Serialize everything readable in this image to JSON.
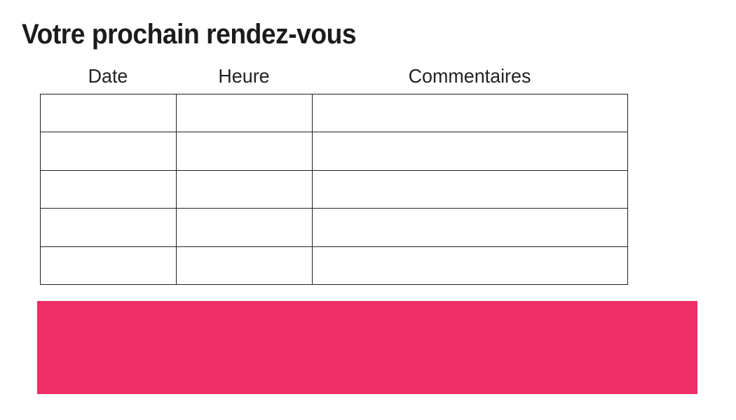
{
  "title": "Votre prochain rendez-vous",
  "table": {
    "headers": [
      "Date",
      "Heure",
      "Commentaires"
    ],
    "rows": [
      [
        "",
        "",
        ""
      ],
      [
        "",
        "",
        ""
      ],
      [
        "",
        "",
        ""
      ],
      [
        "",
        "",
        ""
      ],
      [
        "",
        "",
        ""
      ]
    ]
  },
  "colors": {
    "accent_pink": "#ED2E68",
    "text": "#1C1C1C",
    "table_border": "#231F20"
  }
}
